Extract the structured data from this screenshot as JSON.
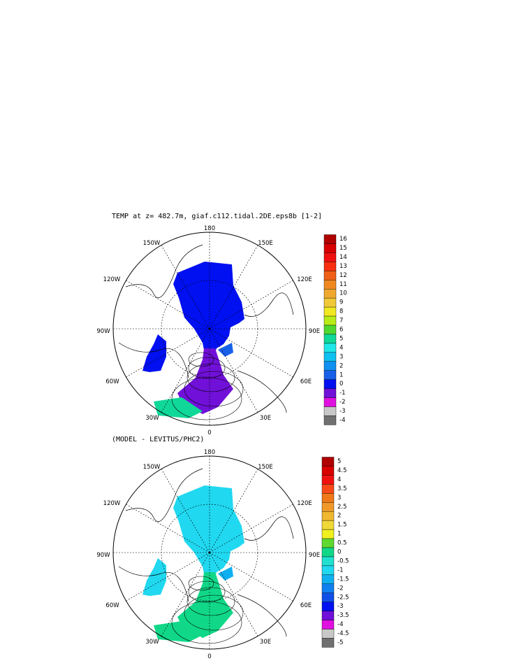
{
  "chart_data": [
    {
      "type": "polar-map",
      "title": "TEMP at z= 482.7m, giaf.c112.tidal.2DE.eps8b [1-2]",
      "projection": "north polar stereographic",
      "lon_labels": [
        "180",
        "150W",
        "150E",
        "120W",
        "120E",
        "90W",
        "90E",
        "60W",
        "60E",
        "30W",
        "30E",
        "0"
      ],
      "colorbar": {
        "levels": [
          "16",
          "15",
          "14",
          "13",
          "12",
          "11",
          "10",
          "9",
          "8",
          "7",
          "6",
          "5",
          "4",
          "3",
          "2",
          "1",
          "0",
          "-1",
          "-2",
          "-3",
          "-4"
        ],
        "colors": [
          "#b00000",
          "#d80000",
          "#f01010",
          "#f83010",
          "#f06018",
          "#f08820",
          "#f0a830",
          "#f0c838",
          "#f0e820",
          "#b8ec18",
          "#50d830",
          "#10d898",
          "#20e8e8",
          "#10c0f0",
          "#1090f0",
          "#1860e8",
          "#0010f0",
          "#7010d8",
          "#e010e0",
          "#c8c8c8",
          "#707070"
        ]
      }
    },
    {
      "type": "polar-map",
      "title": "(MODEL - LEVITUS/PHC2)",
      "projection": "north polar stereographic",
      "lon_labels": [
        "180",
        "150W",
        "150E",
        "120W",
        "120E",
        "90W",
        "90E",
        "60W",
        "60E",
        "30W",
        "30E",
        "0"
      ],
      "colorbar": {
        "levels": [
          "5",
          "4.5",
          "4",
          "3.5",
          "3",
          "2.5",
          "2",
          "1.5",
          "1",
          "0.5",
          "0",
          "-0.5",
          "-1",
          "-1.5",
          "-2",
          "-2.5",
          "-3",
          "-3.5",
          "-4",
          "-4.5",
          "-5"
        ],
        "colors": [
          "#b00000",
          "#d80000",
          "#f01010",
          "#f84818",
          "#f07818",
          "#f09828",
          "#f0b830",
          "#f0d838",
          "#f0f020",
          "#60d830",
          "#10d888",
          "#20e0d0",
          "#20d8f0",
          "#10b0f0",
          "#1080f0",
          "#1050e8",
          "#0010f0",
          "#7010d8",
          "#e010e0",
          "#c8c8c8",
          "#707070"
        ]
      }
    }
  ]
}
